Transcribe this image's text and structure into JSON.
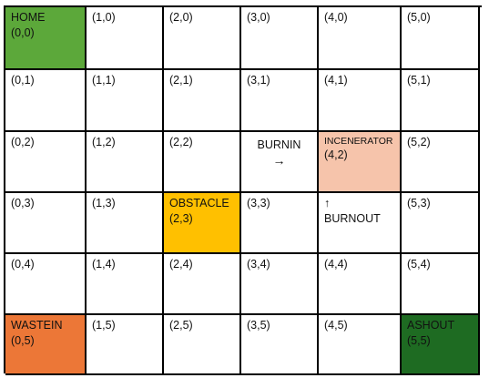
{
  "colors": {
    "home": "#5ca83a",
    "obstacle": "#ffc000",
    "incinerator": "#f6c4ab",
    "wastein": "#ec7737",
    "ashout": "#1e6b22",
    "border": "#000000",
    "cell": "#ffffff"
  },
  "cells": {
    "r0": {
      "c0": {
        "label": "HOME",
        "coord": "(0,0)"
      },
      "c1": {
        "coord": "(1,0)"
      },
      "c2": {
        "coord": "(2,0)"
      },
      "c3": {
        "coord": "(3,0)"
      },
      "c4": {
        "coord": "(4,0)"
      },
      "c5": {
        "coord": "(5,0)"
      }
    },
    "r1": {
      "c0": {
        "coord": "(0,1)"
      },
      "c1": {
        "coord": "(1,1)"
      },
      "c2": {
        "coord": "(2,1)"
      },
      "c3": {
        "coord": "(3,1)"
      },
      "c4": {
        "coord": "(4,1)"
      },
      "c5": {
        "coord": "(5,1)"
      }
    },
    "r2": {
      "c0": {
        "coord": "(0,2)"
      },
      "c1": {
        "coord": "(1,2)"
      },
      "c2": {
        "coord": "(2,2)"
      },
      "c3": {
        "label": "BURNIN",
        "arrow": "→"
      },
      "c4": {
        "label": "INCENERATOR",
        "coord": "(4,2)"
      },
      "c5": {
        "coord": "(5,2)"
      }
    },
    "r3": {
      "c0": {
        "coord": "(0,3)"
      },
      "c1": {
        "coord": "(1,3)"
      },
      "c2": {
        "label": "OBSTACLE",
        "coord": "(2,3)"
      },
      "c3": {
        "coord": "(3,3)"
      },
      "c4": {
        "arrow": "↑",
        "label": "BURNOUT"
      },
      "c5": {
        "coord": "(5,3)"
      }
    },
    "r4": {
      "c0": {
        "coord": "(0,4)"
      },
      "c1": {
        "coord": "(1,4)"
      },
      "c2": {
        "coord": "(2,4)"
      },
      "c3": {
        "coord": "(3,4)"
      },
      "c4": {
        "coord": "(4,4)"
      },
      "c5": {
        "coord": "(5,4)"
      }
    },
    "r5": {
      "c0": {
        "label": "WASTEIN",
        "coord": "(0,5)"
      },
      "c1": {
        "coord": "(1,5)"
      },
      "c2": {
        "coord": "(2,5)"
      },
      "c3": {
        "coord": "(3,5)"
      },
      "c4": {
        "coord": "(4,5)"
      },
      "c5": {
        "label": "ASHOUT",
        "coord": "(5,5)"
      }
    }
  }
}
